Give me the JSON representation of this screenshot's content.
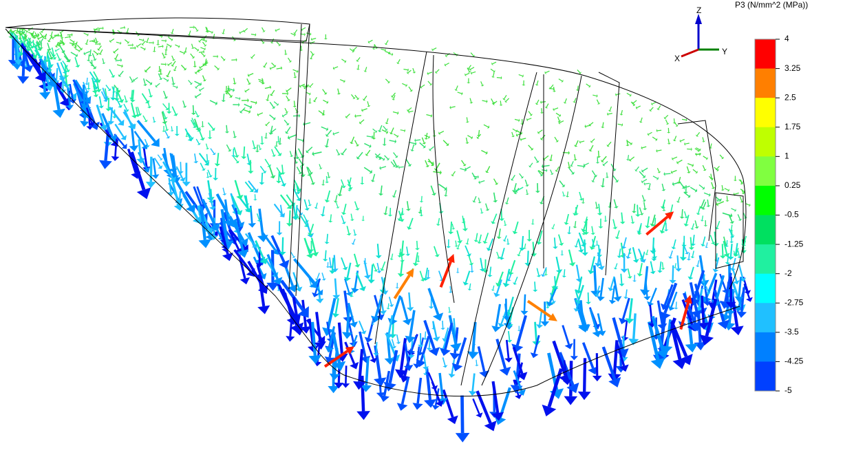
{
  "legend": {
    "title": "P3 (N/mm^2 (MPa))",
    "labels": [
      "4",
      "3.25",
      "2.5",
      "1.75",
      "1",
      "0.25",
      "-0.5",
      "-1.25",
      "-2",
      "-2.75",
      "-3.5",
      "-4.25",
      "-5"
    ],
    "colors": [
      "#ff0000",
      "#ff7f00",
      "#ffff00",
      "#bfff00",
      "#80ff40",
      "#00ff00",
      "#00e060",
      "#20f0a0",
      "#00ffff",
      "#20c0ff",
      "#0080ff",
      "#0040ff"
    ]
  },
  "triad": {
    "z": "Z",
    "x": "X",
    "y": "Y"
  }
}
